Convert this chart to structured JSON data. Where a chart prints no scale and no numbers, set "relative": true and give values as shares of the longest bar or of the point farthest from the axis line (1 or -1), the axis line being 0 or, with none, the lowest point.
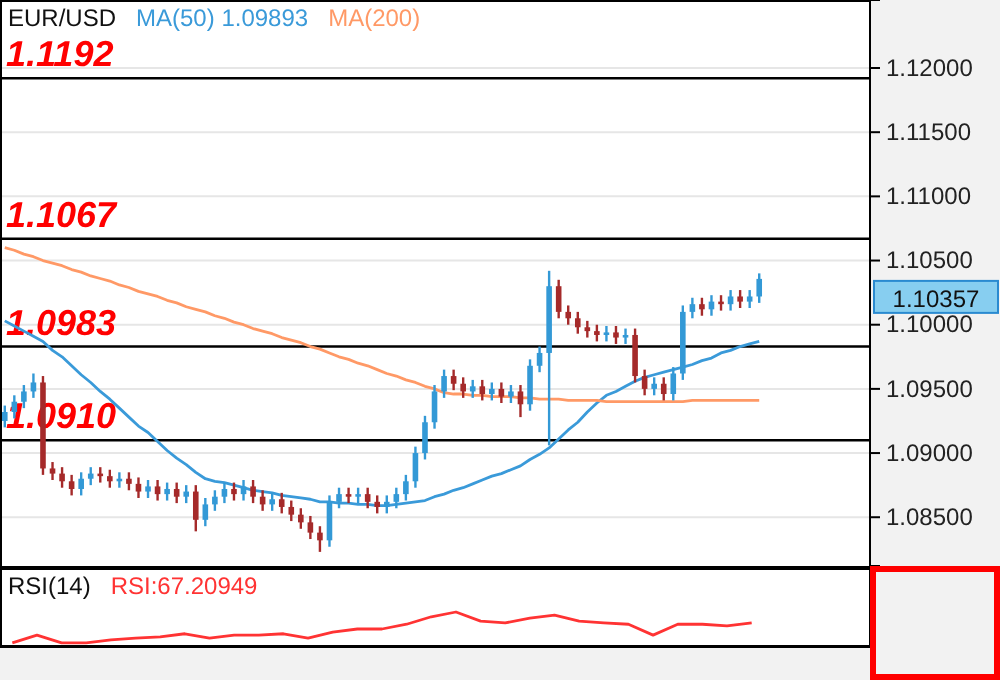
{
  "chart_data": [
    {
      "type": "candlestick",
      "title": "EUR/USD",
      "legend": "top left",
      "tick_labels": "y",
      "grid": "y",
      "categories": [
        null,
        null,
        null,
        null,
        null,
        null,
        null,
        null,
        null,
        null,
        null,
        null,
        null,
        null,
        null,
        null,
        null,
        null,
        null,
        null,
        null,
        null,
        null,
        null,
        null,
        null,
        null,
        null,
        null,
        null,
        null,
        null,
        null,
        null,
        null,
        null,
        null,
        null,
        null,
        null,
        null,
        null,
        null,
        null,
        null,
        null,
        null,
        null,
        null,
        null,
        null,
        null,
        null,
        null,
        null,
        null,
        null,
        null,
        null,
        null,
        null,
        null,
        null,
        null,
        null,
        null,
        null,
        null,
        null,
        null,
        null,
        null,
        null,
        null,
        null,
        null,
        null,
        null,
        null,
        null
      ],
      "ohlc": [
        [
          1.0925,
          1.0937,
          1.092,
          1.0932
        ],
        [
          1.0932,
          1.0945,
          1.0927,
          1.094
        ],
        [
          1.094,
          1.0953,
          1.0935,
          1.0948
        ],
        [
          1.0948,
          1.0962,
          1.0943,
          1.0955
        ],
        [
          1.0955,
          1.096,
          1.0883,
          1.0888
        ],
        [
          1.0888,
          1.0893,
          1.0879,
          1.0884
        ],
        [
          1.0884,
          1.0889,
          1.0873,
          1.0878
        ],
        [
          1.0878,
          1.0883,
          1.0867,
          1.0872
        ],
        [
          1.0872,
          1.0885,
          1.0867,
          1.088
        ],
        [
          1.088,
          1.0889,
          1.0875,
          1.0884
        ],
        [
          1.0884,
          1.0889,
          1.0877,
          1.0882
        ],
        [
          1.0882,
          1.0887,
          1.0873,
          1.0878
        ],
        [
          1.0878,
          1.0885,
          1.0873,
          1.088
        ],
        [
          1.088,
          1.0885,
          1.0871,
          1.0876
        ],
        [
          1.0876,
          1.0881,
          1.0865,
          1.087
        ],
        [
          1.087,
          1.0879,
          1.0865,
          1.0874
        ],
        [
          1.0874,
          1.0879,
          1.0863,
          1.0868
        ],
        [
          1.0868,
          1.0877,
          1.0863,
          1.0872
        ],
        [
          1.0872,
          1.0877,
          1.0861,
          1.0866
        ],
        [
          1.0866,
          1.0875,
          1.0861,
          1.087
        ],
        [
          1.087,
          1.0875,
          1.0839,
          1.0848
        ],
        [
          1.0848,
          1.0865,
          1.0843,
          1.086
        ],
        [
          1.086,
          1.0871,
          1.0855,
          1.0866
        ],
        [
          1.0866,
          1.0877,
          1.0861,
          1.0872
        ],
        [
          1.0872,
          1.0877,
          1.0863,
          1.0868
        ],
        [
          1.0868,
          1.0879,
          1.0863,
          1.0874
        ],
        [
          1.0874,
          1.0879,
          1.0861,
          1.0866
        ],
        [
          1.0866,
          1.0871,
          1.0855,
          1.086
        ],
        [
          1.086,
          1.0869,
          1.0855,
          1.0864
        ],
        [
          1.0864,
          1.0869,
          1.0853,
          1.0858
        ],
        [
          1.0858,
          1.0863,
          1.0847,
          1.0852
        ],
        [
          1.0852,
          1.0857,
          1.0841,
          1.0846
        ],
        [
          1.0846,
          1.0851,
          1.0833,
          1.0838
        ],
        [
          1.0838,
          1.0843,
          1.0823,
          1.0832
        ],
        [
          1.0832,
          1.0867,
          1.0827,
          1.0862
        ],
        [
          1.0862,
          1.0873,
          1.0857,
          1.0868
        ],
        [
          1.0868,
          1.0873,
          1.0861,
          1.0866
        ],
        [
          1.0866,
          1.0873,
          1.0861,
          1.0868
        ],
        [
          1.0868,
          1.0873,
          1.0857,
          1.0862
        ],
        [
          1.0862,
          1.0867,
          1.0853,
          1.0858
        ],
        [
          1.0858,
          1.0867,
          1.0853,
          1.0862
        ],
        [
          1.0862,
          1.0873,
          1.0857,
          1.0868
        ],
        [
          1.0868,
          1.0883,
          1.0863,
          1.0878
        ],
        [
          1.0878,
          1.0905,
          1.0873,
          1.09
        ],
        [
          1.09,
          1.0929,
          1.0895,
          1.0924
        ],
        [
          1.0924,
          1.0953,
          1.0919,
          1.0948
        ],
        [
          1.0948,
          1.0965,
          1.0943,
          1.096
        ],
        [
          1.096,
          1.0965,
          1.0949,
          1.0954
        ],
        [
          1.0954,
          1.0959,
          1.0943,
          1.0948
        ],
        [
          1.0948,
          1.0957,
          1.0943,
          1.0952
        ],
        [
          1.0952,
          1.0957,
          1.0941,
          1.0946
        ],
        [
          1.0946,
          1.0955,
          1.0941,
          1.095
        ],
        [
          1.095,
          1.0955,
          1.0939,
          1.0944
        ],
        [
          1.0944,
          1.0953,
          1.0939,
          1.0948
        ],
        [
          1.0948,
          1.0953,
          1.0928,
          1.0938
        ],
        [
          1.0938,
          1.0973,
          1.0933,
          1.0968
        ],
        [
          1.0968,
          1.0983,
          1.0963,
          1.0978
        ],
        [
          1.0978,
          1.1042,
          1.0906,
          1.103
        ],
        [
          1.103,
          1.1035,
          1.1005,
          1.101
        ],
        [
          1.101,
          1.1015,
          1.1,
          1.1005
        ],
        [
          1.1005,
          1.101,
          1.0993,
          1.0998
        ],
        [
          1.0998,
          1.1003,
          1.099,
          1.0995
        ],
        [
          1.0995,
          1.1,
          1.0987,
          1.0992
        ],
        [
          1.0992,
          1.0999,
          1.0987,
          1.0994
        ],
        [
          1.0994,
          1.0999,
          1.0985,
          1.099
        ],
        [
          1.099,
          1.0997,
          1.0985,
          1.0992
        ],
        [
          1.0992,
          1.0997,
          1.0955,
          1.096
        ],
        [
          1.096,
          1.0965,
          1.0945,
          1.095
        ],
        [
          1.095,
          1.0959,
          1.0945,
          1.0954
        ],
        [
          1.0954,
          1.0959,
          1.0941,
          1.0946
        ],
        [
          1.0946,
          1.0967,
          1.0941,
          1.0962
        ],
        [
          1.0962,
          1.1015,
          1.0957,
          1.101
        ],
        [
          1.101,
          1.1021,
          1.1005,
          1.1016
        ],
        [
          1.1016,
          1.1021,
          1.1007,
          1.1012
        ],
        [
          1.1012,
          1.1023,
          1.1007,
          1.1018
        ],
        [
          1.1018,
          1.1023,
          1.1011,
          1.1016
        ],
        [
          1.1016,
          1.1027,
          1.1011,
          1.1022
        ],
        [
          1.1022,
          1.1027,
          1.1013,
          1.1018
        ],
        [
          1.1018,
          1.1027,
          1.1013,
          1.1022
        ],
        [
          1.1022,
          1.104,
          1.1017,
          1.10357
        ]
      ],
      "colors": [
        "#3399d6",
        "#3399d6",
        "#3399d6",
        "#3399d6",
        "#a52a2a",
        "#a52a2a",
        "#a52a2a",
        "#a52a2a",
        "#3399d6",
        "#3399d6",
        "#a52a2a",
        "#a52a2a",
        "#3399d6",
        "#a52a2a",
        "#a52a2a",
        "#3399d6",
        "#a52a2a",
        "#3399d6",
        "#a52a2a",
        "#3399d6",
        "#a52a2a",
        "#3399d6",
        "#3399d6",
        "#3399d6",
        "#a52a2a",
        "#3399d6",
        "#a52a2a",
        "#a52a2a",
        "#3399d6",
        "#a52a2a",
        "#a52a2a",
        "#a52a2a",
        "#a52a2a",
        "#a52a2a",
        "#3399d6",
        "#3399d6",
        "#a52a2a",
        "#3399d6",
        "#a52a2a",
        "#a52a2a",
        "#3399d6",
        "#3399d6",
        "#3399d6",
        "#3399d6",
        "#3399d6",
        "#3399d6",
        "#3399d6",
        "#a52a2a",
        "#a52a2a",
        "#3399d6",
        "#a52a2a",
        "#3399d6",
        "#a52a2a",
        "#3399d6",
        "#a52a2a",
        "#3399d6",
        "#3399d6",
        "#3399d6",
        "#a52a2a",
        "#a52a2a",
        "#a52a2a",
        "#a52a2a",
        "#a52a2a",
        "#3399d6",
        "#a52a2a",
        "#3399d6",
        "#a52a2a",
        "#a52a2a",
        "#3399d6",
        "#a52a2a",
        "#3399d6",
        "#3399d6",
        "#3399d6",
        "#a52a2a",
        "#3399d6",
        "#a52a2a",
        "#3399d6",
        "#a52a2a",
        "#3399d6",
        "#3399d6"
      ],
      "series": [
        {
          "type": "line",
          "name": "MA(50) 1.09893",
          "color": "#3a9ad9",
          "values": [
            1.1003,
            1.0999,
            1.0995,
            1.0991,
            1.0987,
            1.098,
            1.0975,
            1.0968,
            1.0961,
            1.0955,
            1.0948,
            1.0942,
            1.0935,
            1.0928,
            1.0921,
            1.0916,
            1.0909,
            1.0902,
            1.0896,
            1.0891,
            1.0885,
            1.088,
            1.0878,
            1.0877,
            1.0875,
            1.0873,
            1.0871,
            1.087,
            1.0869,
            1.0867,
            1.0866,
            1.0865,
            1.0864,
            1.0862,
            1.0862,
            1.0861,
            1.0861,
            1.086,
            1.086,
            1.0859,
            1.0859,
            1.086,
            1.0861,
            1.0862,
            1.0863,
            1.0866,
            1.0868,
            1.0871,
            1.0873,
            1.0876,
            1.0879,
            1.0882,
            1.0884,
            1.0887,
            1.089,
            1.0895,
            1.0899,
            1.0904,
            1.0911,
            1.0918,
            1.0924,
            1.0932,
            1.0939,
            1.0945,
            1.0948,
            1.0952,
            1.0956,
            1.0959,
            1.0961,
            1.0963,
            1.0965,
            1.0967,
            1.0969,
            1.0972,
            1.0974,
            1.0978,
            1.098,
            1.0983,
            1.0985,
            1.0987
          ]
        },
        {
          "type": "line",
          "name": "MA(200)",
          "color": "#ff9966",
          "values": [
            1.106,
            1.1058,
            1.1055,
            1.1053,
            1.105,
            1.1048,
            1.1046,
            1.1043,
            1.1041,
            1.1038,
            1.1036,
            1.1034,
            1.1031,
            1.1029,
            1.1026,
            1.1024,
            1.1022,
            1.1019,
            1.1017,
            1.1014,
            1.1012,
            1.101,
            1.1007,
            1.1005,
            1.1002,
            1.1,
            1.0997,
            1.0995,
            1.0993,
            1.099,
            1.0988,
            1.0986,
            1.0983,
            1.0981,
            1.0978,
            1.0975,
            1.0973,
            1.097,
            1.0968,
            1.0965,
            1.0962,
            1.096,
            1.0957,
            1.0955,
            1.0952,
            1.095,
            1.0947,
            1.0946,
            1.0946,
            1.0945,
            1.0945,
            1.0944,
            1.0944,
            1.0944,
            1.0943,
            1.0943,
            1.0942,
            1.0942,
            1.0942,
            1.0941,
            1.0941,
            1.0941,
            1.0941,
            1.094,
            1.094,
            1.094,
            1.094,
            1.094,
            1.094,
            1.094,
            1.094,
            1.094,
            1.0941,
            1.0941,
            1.0941,
            1.0941,
            1.0941,
            1.0941,
            1.0941,
            1.0941
          ]
        }
      ],
      "ylim": [
        1.0812,
        1.1253
      ],
      "yticks": [
        {
          "value": 1.085,
          "label": "1.08500"
        },
        {
          "value": 1.09,
          "label": "1.09000"
        },
        {
          "value": 1.095,
          "label": "1.09500"
        },
        {
          "value": 1.1,
          "label": "1.10000"
        },
        {
          "value": 1.105,
          "label": "1.10500"
        },
        {
          "value": 1.11,
          "label": "1.11000"
        },
        {
          "value": 1.115,
          "label": "1.11500"
        },
        {
          "value": 1.12,
          "label": "1.12000"
        }
      ],
      "ref_lines": [
        {
          "axis": "y",
          "value": 1.1192,
          "label": "1.1192",
          "color": "#000000"
        },
        {
          "axis": "y",
          "value": 1.1067,
          "label": "1.1067",
          "color": "#000000"
        },
        {
          "axis": "y",
          "value": 1.0983,
          "label": "1.0983",
          "color": "#000000"
        },
        {
          "axis": "y",
          "value": 1.091,
          "label": "1.0910",
          "color": "#000000"
        }
      ],
      "annotations": [
        "1.10357"
      ]
    },
    {
      "type": "line",
      "title": "RSI(14)",
      "relative": true,
      "legend": "top left",
      "tick_labels": false,
      "categories": [
        null,
        null,
        null,
        null,
        null,
        null,
        null,
        null,
        null,
        null,
        null,
        null,
        null,
        null,
        null,
        null,
        null,
        null,
        null,
        null,
        null,
        null,
        null,
        null,
        null,
        null,
        null,
        null,
        null,
        null,
        null
      ],
      "series": [
        {
          "name": "RSI:67.20949",
          "color": "#ff3333",
          "values": [
            0.09,
            0.32,
            0.09,
            0.09,
            0.18,
            0.23,
            0.27,
            0.36,
            0.23,
            0.32,
            0.32,
            0.36,
            0.23,
            0.41,
            0.5,
            0.5,
            0.64,
            0.86,
            1,
            0.73,
            0.68,
            0.82,
            0.91,
            0.73,
            0.68,
            0.64,
            0.32,
            0.64,
            0.64,
            0.59,
            0.68
          ]
        }
      ]
    }
  ]
}
